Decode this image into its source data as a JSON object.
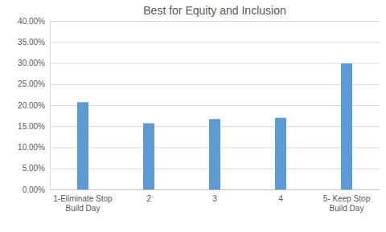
{
  "chart_data": {
    "type": "bar",
    "title": "Best for Equity and Inclusion",
    "categories": [
      "1-Eliminate Stop Build Day",
      "2",
      "3",
      "4",
      "5- Keep Stop Build Day"
    ],
    "values": [
      20.7,
      15.7,
      16.7,
      17.0,
      29.9
    ],
    "color": "#5b9bd5",
    "ylim": [
      0,
      40
    ],
    "yticks": [
      {
        "value": 0,
        "label": "0.00%"
      },
      {
        "value": 5,
        "label": "5.00%"
      },
      {
        "value": 10,
        "label": "10.00%"
      },
      {
        "value": 15,
        "label": "15.00%"
      },
      {
        "value": 20,
        "label": "20.00%"
      },
      {
        "value": 25,
        "label": "25.00%"
      },
      {
        "value": 30,
        "label": "30.00%"
      },
      {
        "value": 35,
        "label": "35.00%"
      },
      {
        "value": 40,
        "label": "40.00%"
      }
    ],
    "grid": true
  }
}
